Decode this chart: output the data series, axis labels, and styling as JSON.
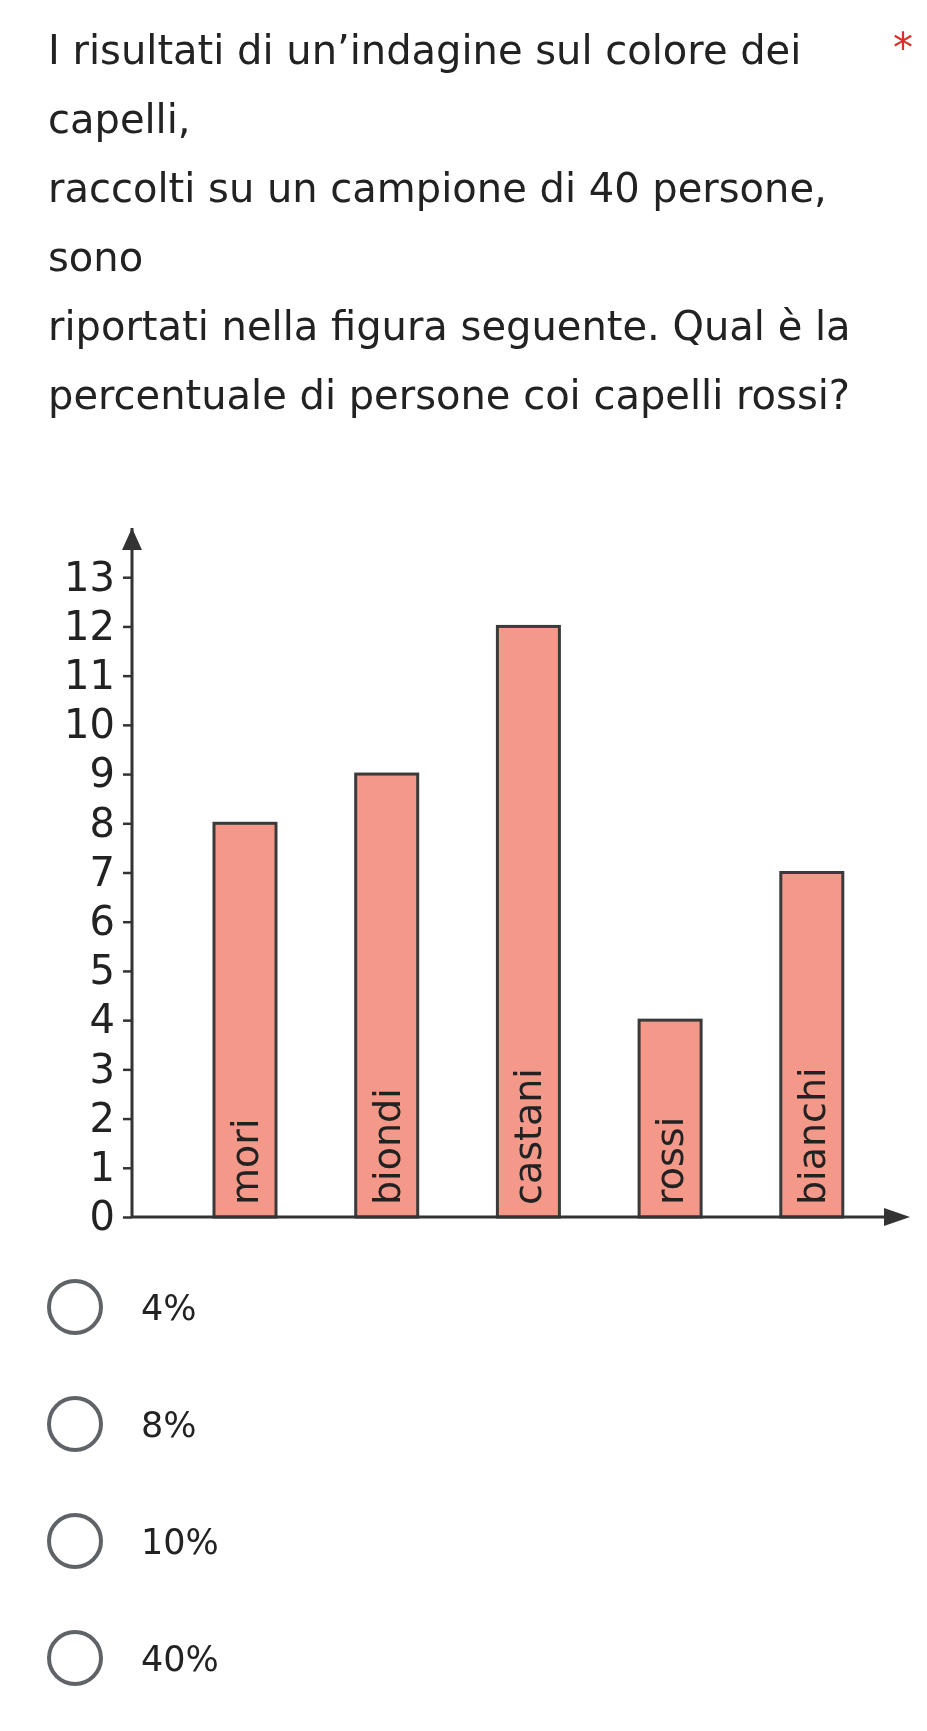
{
  "chart_data": {
    "type": "bar",
    "title": "I risultati di un’indagine sul colore dei\ncapelli,\nraccolti su un campione di 40 persone,\nsono\nriportati nella figura seguente. Qual è la\npercentuale di persone coi capelli rossi?",
    "categories": [
      "mori",
      "biondi",
      "castani",
      "rossi",
      "bianchi"
    ],
    "values": [
      8,
      9,
      12,
      4,
      7
    ],
    "color": "#f4998a",
    "ylim": [
      0,
      14
    ],
    "yticks": [
      0,
      1,
      2,
      3,
      4,
      5,
      6,
      7,
      8,
      9,
      10,
      11,
      12,
      13
    ],
    "grid": false,
    "annotations": [
      "*",
      "4%",
      "8%",
      "10%",
      "40%"
    ]
  }
}
